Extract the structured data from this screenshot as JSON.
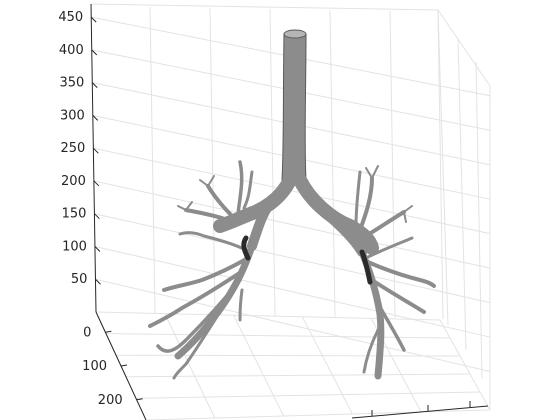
{
  "chart_data": {
    "type": "scatter",
    "dimensions": 3,
    "title": "",
    "xlabel": "",
    "ylabel": "",
    "zlabel": "",
    "grid": true,
    "z_axis": {
      "ticks": [
        50,
        100,
        150,
        200,
        250,
        300,
        350,
        400,
        450
      ],
      "range": [
        0,
        470
      ]
    },
    "y_axis": {
      "ticks": [
        0,
        100,
        200
      ],
      "range": [
        -60,
        260
      ]
    },
    "x_axis": {
      "ticks": [],
      "range": [
        0,
        400
      ]
    },
    "tick_labels": {
      "z": [
        "50",
        "100",
        "150",
        "200",
        "250",
        "300",
        "350",
        "400",
        "450"
      ],
      "y": [
        "0",
        "100",
        "200"
      ]
    },
    "series": [
      {
        "type": "surface",
        "colors": {
          "fill": "#8c8c8c",
          "edge": "#5a5a5a",
          "cap": "#b5b5b5",
          "dark": "#2b2b2b"
        }
      }
    ]
  }
}
